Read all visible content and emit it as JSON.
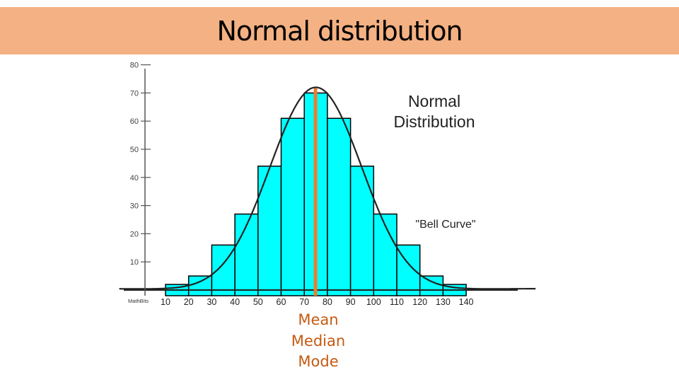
{
  "slide": {
    "title": "Normal distribution",
    "center_labels": [
      "Mean",
      "Median",
      "Mode"
    ]
  },
  "chart_data": {
    "type": "bar",
    "title": "Normal Distribution",
    "title_lines": [
      "Normal",
      "Distribution"
    ],
    "annotation": "\"Bell Curve\"",
    "watermark": "MathBits",
    "x_ticks": [
      10,
      20,
      30,
      40,
      50,
      60,
      70,
      80,
      90,
      100,
      110,
      120,
      130,
      140
    ],
    "y_ticks": [
      10,
      20,
      30,
      40,
      50,
      60,
      70,
      80
    ],
    "bins": [
      {
        "from": 10,
        "to": 20,
        "value": 4
      },
      {
        "from": 20,
        "to": 30,
        "value": 7
      },
      {
        "from": 30,
        "to": 40,
        "value": 18
      },
      {
        "from": 40,
        "to": 50,
        "value": 29
      },
      {
        "from": 50,
        "to": 60,
        "value": 46
      },
      {
        "from": 60,
        "to": 70,
        "value": 63
      },
      {
        "from": 70,
        "to": 80,
        "value": 72
      },
      {
        "from": 80,
        "to": 90,
        "value": 63
      },
      {
        "from": 90,
        "to": 100,
        "value": 46
      },
      {
        "from": 100,
        "to": 110,
        "value": 29
      },
      {
        "from": 110,
        "to": 120,
        "value": 18
      },
      {
        "from": 120,
        "to": 130,
        "value": 7
      },
      {
        "from": 130,
        "to": 140,
        "value": 4
      }
    ],
    "mean": 75,
    "std_dev": 20,
    "curve_peak": 74,
    "ylim": [
      0,
      80
    ],
    "xlim": [
      0,
      150
    ],
    "colors": {
      "bar_fill": "#00ffff",
      "bar_stroke": "#000000",
      "curve": "#222222",
      "mean_line": "#ed7d31",
      "label_text": "#c55a11"
    }
  }
}
